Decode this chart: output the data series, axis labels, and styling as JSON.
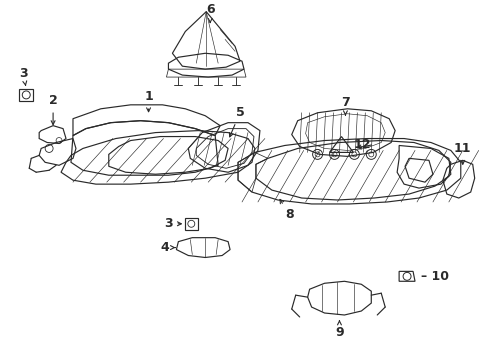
{
  "bg_color": "#ffffff",
  "line_color": "#2a2a2a",
  "figsize": [
    4.9,
    3.6
  ],
  "dpi": 100,
  "lw": 0.85,
  "lt": 0.45,
  "fs": 9.0
}
